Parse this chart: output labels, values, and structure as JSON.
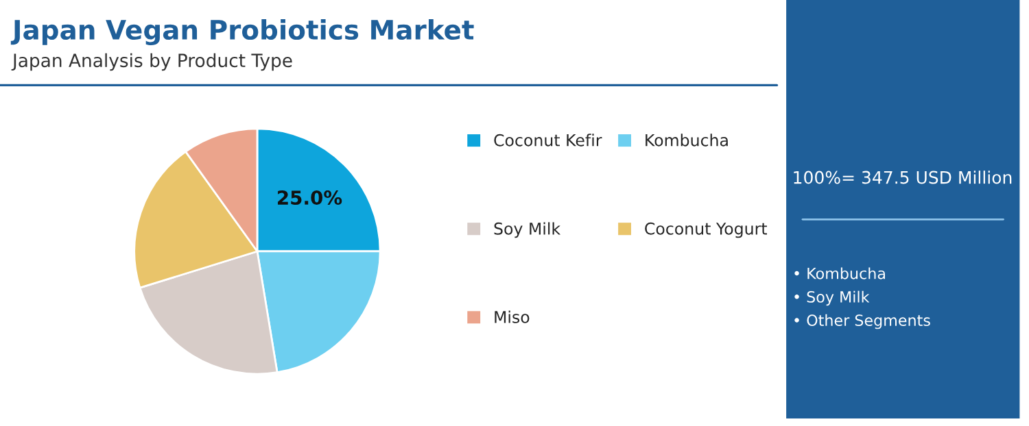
{
  "chart_data": {
    "type": "pie",
    "title": "Japan Vegan Probiotics Market",
    "subtitle": "Japan Analysis by Product Type",
    "categories": [
      "Coconut Kefir",
      "Kombucha",
      "Soy Milk",
      "Coconut Yogurt",
      "Miso"
    ],
    "values": [
      25.0,
      22.4,
      22.8,
      19.9,
      9.9
    ],
    "colors": [
      "#0ea5dc",
      "#6dcff0",
      "#d7ccc8",
      "#e9c46a",
      "#eba48c"
    ],
    "value_labels": [
      "25.0%",
      null,
      null,
      null,
      null
    ],
    "legend": "right",
    "annotations": [
      "100%= 347.5 USD Million",
      "• Kombucha",
      "• Soy Milk",
      "• Other Segments"
    ]
  }
}
